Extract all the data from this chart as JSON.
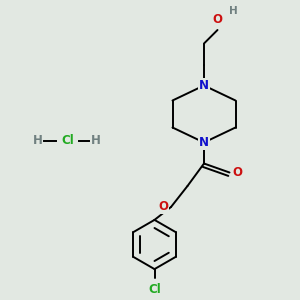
{
  "background_color": "#e2e8e2",
  "bond_color": "#000000",
  "N_color": "#1010cc",
  "O_color": "#cc1010",
  "Cl_color": "#22aa22",
  "H_color": "#708080",
  "figsize": [
    3.0,
    3.0
  ],
  "dpi": 100,
  "xlim": [
    0,
    10
  ],
  "ylim": [
    0,
    10
  ],
  "lw": 1.4,
  "fs": 8.5,
  "fs_small": 7.5
}
